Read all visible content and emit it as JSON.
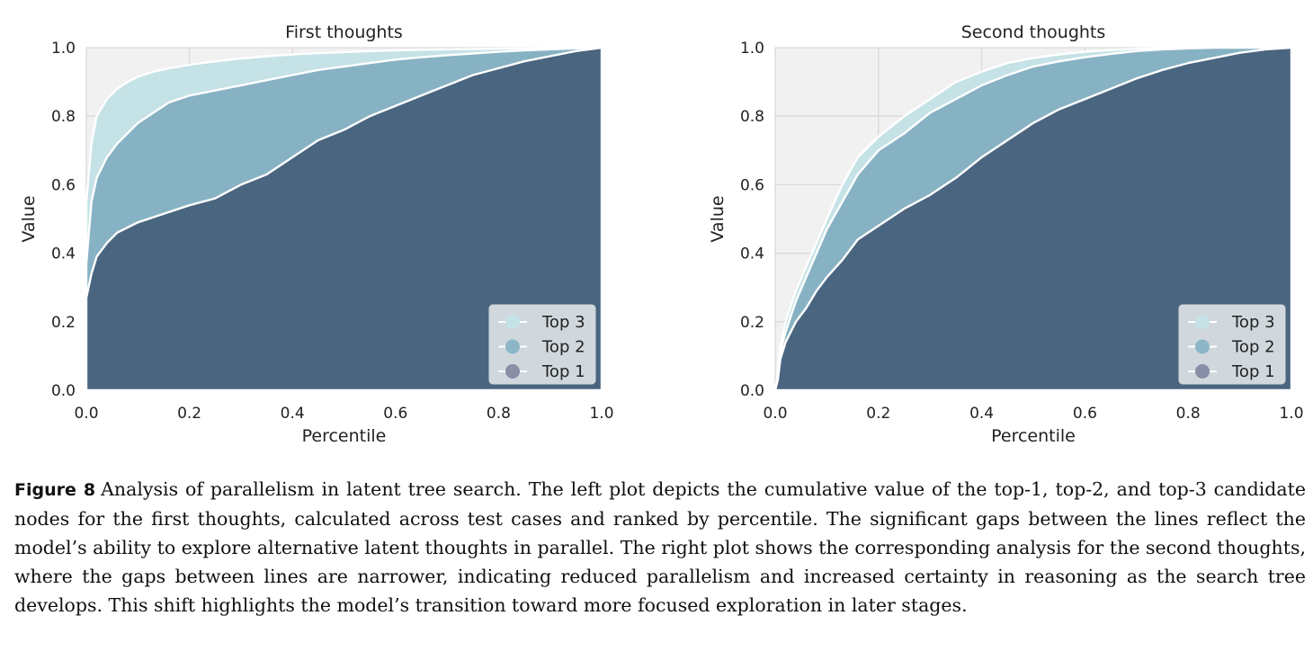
{
  "figure_label": "Figure 8",
  "caption": "Analysis of parallelism in latent tree search. The left plot depicts the cumulative value of the top-1, top-2, and top-3 candidate nodes for the first thoughts, calculated across test cases and ranked by percentile. The significant gaps between the lines reflect the model’s ability to explore alternative latent thoughts in parallel. The right plot shows the corresponding analysis for the second thoughts, where the gaps between lines are narrower, indicating reduced parallelism and increased certainty in reasoning as the search tree develops. This shift highlights the model’s transition toward more focused exploration in later stages.",
  "colors": {
    "top1": "#4a6580",
    "top2": "#87b2c3",
    "top3": "#c5e2e6",
    "plot_bg": "#f1f1f1",
    "legend_top3": "#c5e2e6",
    "legend_top2": "#8cb6c8",
    "legend_top1": "#888ea6"
  },
  "chart_data": [
    {
      "type": "area",
      "title": "First thoughts",
      "xlabel": "Percentile",
      "ylabel": "Value",
      "xlim": [
        0,
        1
      ],
      "ylim": [
        0,
        1
      ],
      "xticks": [
        "0.0",
        "0.2",
        "0.4",
        "0.6",
        "0.8",
        "1.0"
      ],
      "yticks": [
        "0.0",
        "0.2",
        "0.4",
        "0.6",
        "0.8",
        "1.0"
      ],
      "legend_position": "lower-right",
      "legend": [
        "Top 3",
        "Top 2",
        "Top 1"
      ],
      "x": [
        0,
        0.01,
        0.02,
        0.04,
        0.06,
        0.08,
        0.1,
        0.13,
        0.16,
        0.2,
        0.25,
        0.3,
        0.35,
        0.4,
        0.45,
        0.5,
        0.55,
        0.6,
        0.65,
        0.7,
        0.75,
        0.8,
        0.85,
        0.9,
        0.95,
        1.0
      ],
      "series": [
        {
          "name": "Top 1",
          "values": [
            0.27,
            0.34,
            0.39,
            0.43,
            0.46,
            0.475,
            0.49,
            0.505,
            0.52,
            0.54,
            0.56,
            0.6,
            0.63,
            0.68,
            0.73,
            0.76,
            0.8,
            0.83,
            0.86,
            0.89,
            0.92,
            0.94,
            0.96,
            0.975,
            0.99,
            1.0
          ]
        },
        {
          "name": "Top 2",
          "values": [
            0.37,
            0.55,
            0.62,
            0.68,
            0.72,
            0.75,
            0.78,
            0.81,
            0.84,
            0.86,
            0.875,
            0.89,
            0.905,
            0.92,
            0.935,
            0.945,
            0.955,
            0.965,
            0.972,
            0.978,
            0.983,
            0.988,
            0.992,
            0.995,
            0.998,
            1.0
          ]
        },
        {
          "name": "Top 3",
          "values": [
            0.55,
            0.72,
            0.8,
            0.85,
            0.88,
            0.9,
            0.915,
            0.93,
            0.94,
            0.95,
            0.96,
            0.968,
            0.975,
            0.98,
            0.984,
            0.987,
            0.99,
            0.992,
            0.994,
            0.995,
            0.996,
            0.997,
            0.998,
            0.999,
            1.0,
            1.0
          ]
        }
      ]
    },
    {
      "type": "area",
      "title": "Second thoughts",
      "xlabel": "Percentile",
      "ylabel": "Value",
      "xlim": [
        0,
        1
      ],
      "ylim": [
        0,
        1
      ],
      "xticks": [
        "0.0",
        "0.2",
        "0.4",
        "0.6",
        "0.8",
        "1.0"
      ],
      "yticks": [
        "0.0",
        "0.2",
        "0.4",
        "0.6",
        "0.8",
        "1.0"
      ],
      "legend_position": "lower-right",
      "legend": [
        "Top 3",
        "Top 2",
        "Top 1"
      ],
      "x": [
        0,
        0.005,
        0.01,
        0.02,
        0.04,
        0.06,
        0.08,
        0.1,
        0.13,
        0.16,
        0.2,
        0.25,
        0.3,
        0.35,
        0.4,
        0.45,
        0.5,
        0.55,
        0.6,
        0.65,
        0.7,
        0.75,
        0.8,
        0.85,
        0.9,
        0.95,
        1.0
      ],
      "series": [
        {
          "name": "Top 1",
          "values": [
            0,
            0.03,
            0.09,
            0.14,
            0.2,
            0.24,
            0.29,
            0.33,
            0.38,
            0.44,
            0.48,
            0.53,
            0.57,
            0.62,
            0.68,
            0.73,
            0.78,
            0.82,
            0.85,
            0.88,
            0.91,
            0.935,
            0.955,
            0.97,
            0.985,
            0.995,
            1.0
          ]
        },
        {
          "name": "Top 2",
          "values": [
            0,
            0.04,
            0.11,
            0.17,
            0.26,
            0.33,
            0.4,
            0.47,
            0.55,
            0.63,
            0.7,
            0.75,
            0.81,
            0.85,
            0.89,
            0.92,
            0.945,
            0.96,
            0.972,
            0.982,
            0.99,
            0.995,
            0.998,
            1.0,
            1.0,
            1.0,
            1.0
          ]
        },
        {
          "name": "Top 3",
          "values": [
            0,
            0.05,
            0.13,
            0.2,
            0.29,
            0.36,
            0.43,
            0.5,
            0.6,
            0.68,
            0.74,
            0.8,
            0.85,
            0.9,
            0.93,
            0.955,
            0.97,
            0.98,
            0.988,
            0.993,
            0.997,
            0.999,
            1.0,
            1.0,
            1.0,
            1.0,
            1.0
          ]
        }
      ]
    }
  ]
}
